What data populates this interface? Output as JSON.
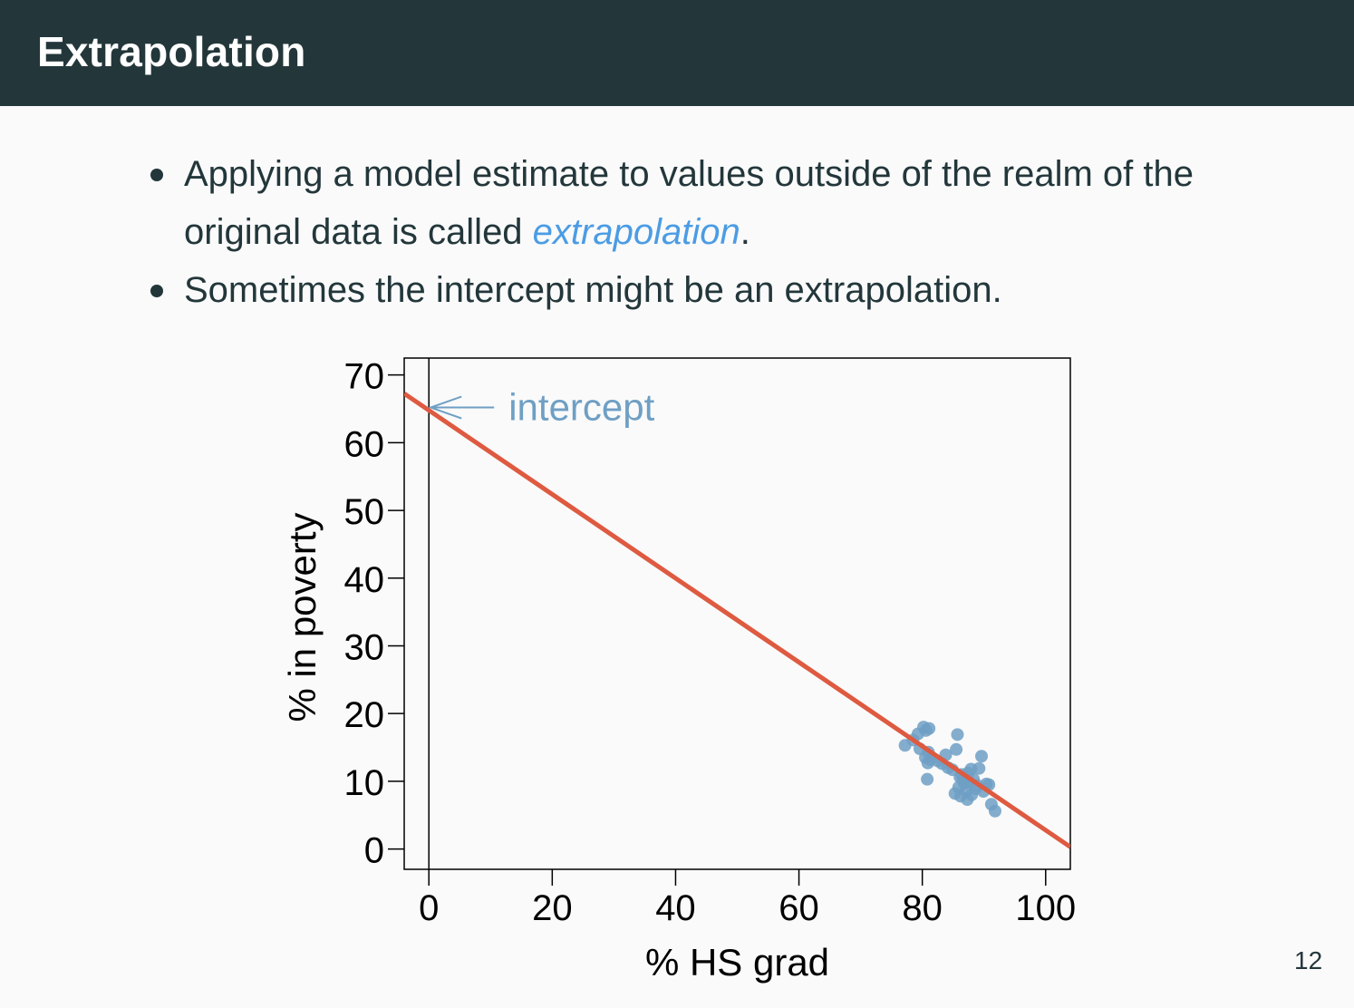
{
  "slide": {
    "title": "Extrapolation",
    "page_number": "12"
  },
  "bullets": [
    {
      "before": "Applying a model estimate to values outside of the realm of the original data is called ",
      "highlight": "extrapolation",
      "after": "."
    },
    {
      "before": "Sometimes the intercept might be an extrapolation.",
      "highlight": "",
      "after": ""
    }
  ],
  "colors": {
    "header_bg": "#23373b",
    "alert": "#4b9ce4",
    "line": "#de5a40",
    "points": "#6f9fc4",
    "annotation": "#6f9fc4"
  },
  "chart_data": {
    "type": "scatter",
    "xlabel": "% HS grad",
    "ylabel": "% in poverty",
    "xlim": [
      -4,
      104
    ],
    "ylim": [
      -3,
      72.5
    ],
    "xticks": [
      0,
      20,
      40,
      60,
      80,
      100
    ],
    "yticks": [
      0,
      10,
      20,
      30,
      40,
      50,
      60,
      70
    ],
    "annotation": {
      "text": "intercept",
      "point": [
        0,
        64.8
      ]
    },
    "regression_line": {
      "intercept": 64.78,
      "slope": -0.62
    },
    "vertical_reference_line_x": 0,
    "points": [
      [
        77.2,
        15.3
      ],
      [
        78.5,
        16.1
      ],
      [
        79.3,
        17.0
      ],
      [
        79.6,
        14.8
      ],
      [
        80.2,
        18.0
      ],
      [
        80.6,
        17.5
      ],
      [
        81.1,
        17.8
      ],
      [
        80.5,
        13.5
      ],
      [
        80.9,
        12.7
      ],
      [
        81.3,
        13.2
      ],
      [
        81.0,
        14.3
      ],
      [
        80.8,
        10.3
      ],
      [
        82.5,
        13.0
      ],
      [
        83.2,
        12.6
      ],
      [
        83.8,
        13.9
      ],
      [
        84.2,
        12.0
      ],
      [
        84.9,
        11.7
      ],
      [
        85.7,
        16.9
      ],
      [
        85.5,
        14.7
      ],
      [
        85.3,
        8.2
      ],
      [
        85.9,
        9.1
      ],
      [
        86.1,
        10.6
      ],
      [
        86.4,
        11.0
      ],
      [
        86.2,
        7.8
      ],
      [
        86.8,
        9.7
      ],
      [
        87.1,
        8.6
      ],
      [
        87.3,
        7.3
      ],
      [
        87.6,
        9.9
      ],
      [
        87.9,
        11.8
      ],
      [
        88.3,
        10.3
      ],
      [
        88.6,
        8.9
      ],
      [
        88.9,
        9.4
      ],
      [
        89.2,
        11.9
      ],
      [
        89.6,
        13.7
      ],
      [
        89.9,
        8.5
      ],
      [
        90.4,
        9.6
      ],
      [
        90.8,
        9.5
      ],
      [
        91.2,
        6.6
      ],
      [
        91.8,
        5.6
      ],
      [
        88.0,
        8.0
      ],
      [
        86.6,
        10.2
      ],
      [
        87.4,
        11.2
      ]
    ]
  }
}
